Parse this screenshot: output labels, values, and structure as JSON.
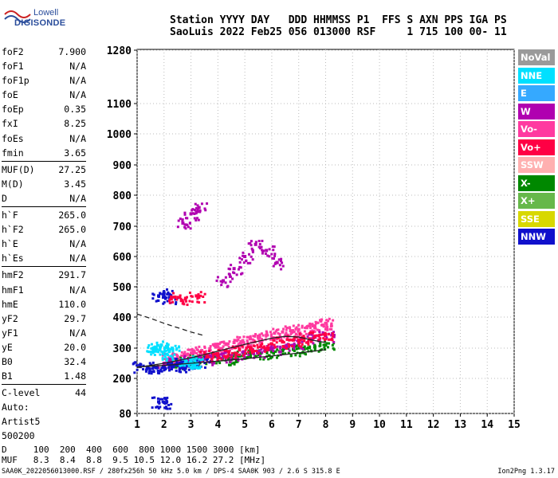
{
  "logo": {
    "line1": "Lowell",
    "line2": "DIGISONDE"
  },
  "header": {
    "line1": "Station YYYY DAY   DDD HHMMSS P1  FFS S AXN PPS IGA PS",
    "line2": "SaoLuis 2022 Feb25 056 013000 RSF     1 715 100 00- 11"
  },
  "params": [
    {
      "key": "foF2",
      "value": "7.900"
    },
    {
      "key": "foF1",
      "value": "N/A"
    },
    {
      "key": "foF1p",
      "value": "N/A"
    },
    {
      "key": "foE",
      "value": "N/A"
    },
    {
      "key": "foEp",
      "value": "0.35"
    },
    {
      "key": "fxI",
      "value": "8.25"
    },
    {
      "key": "foEs",
      "value": "N/A"
    },
    {
      "key": "fmin",
      "value": "3.65"
    },
    {
      "key": "MUF(D)",
      "value": "27.25"
    },
    {
      "key": "M(D)",
      "value": "3.45"
    },
    {
      "key": "D",
      "value": "N/A"
    },
    {
      "key": "h`F",
      "value": "265.0"
    },
    {
      "key": "h`F2",
      "value": "265.0"
    },
    {
      "key": "h`E",
      "value": "N/A"
    },
    {
      "key": "h`Es",
      "value": "N/A"
    },
    {
      "key": "hmF2",
      "value": "291.7"
    },
    {
      "key": "hmF1",
      "value": "N/A"
    },
    {
      "key": "hmE",
      "value": "110.0"
    },
    {
      "key": "yF2",
      "value": "29.7"
    },
    {
      "key": "yF1",
      "value": "N/A"
    },
    {
      "key": "yE",
      "value": "20.0"
    },
    {
      "key": "B0",
      "value": "32.4"
    },
    {
      "key": "B1",
      "value": "1.48"
    },
    {
      "key": "C-level",
      "value": "44"
    }
  ],
  "autoscale": {
    "line1": "Auto:",
    "line2": "Artist5",
    "line3": "500200"
  },
  "legend": [
    {
      "label": "NoVal",
      "color": "#9a9a9a"
    },
    {
      "label": "NNE",
      "color": "#00e0ff"
    },
    {
      "label": "E",
      "color": "#35a9ff"
    },
    {
      "label": "W",
      "color": "#b000b0"
    },
    {
      "label": "Vo-",
      "color": "#ff3aa0"
    },
    {
      "label": "Vo+",
      "color": "#ff0044"
    },
    {
      "label": "SSW",
      "color": "#ffb0b0"
    },
    {
      "label": "X-",
      "color": "#008800"
    },
    {
      "label": "X+",
      "color": "#66b84a"
    },
    {
      "label": "SSE",
      "color": "#d8d800"
    },
    {
      "label": "NNW",
      "color": "#1010cc"
    }
  ],
  "bottom": {
    "line1": "D     100  200  400  600  800 1000 1500 3000 [km]",
    "line2": "MUF   8.3  8.4  8.8  9.5 10.5 12.0 16.2 27.2 [MHz]"
  },
  "footer": "SAA0K_2022056013000.RSF / 280fx256h 50 kHz 5.0 km / DPS-4 SAA0K 903 / 2.6 S 315.8 E",
  "version": "Ion2Png 1.3.17",
  "chart_data": {
    "type": "scatter",
    "title": "",
    "xlabel": "",
    "ylabel": "",
    "xlim": [
      1,
      15
    ],
    "ylim": [
      80,
      1280
    ],
    "x_ticks": [
      1,
      2,
      3,
      4,
      5,
      6,
      7,
      8,
      9,
      10,
      11,
      12,
      13,
      14,
      15
    ],
    "y_ticks": [
      80,
      200,
      300,
      400,
      500,
      600,
      700,
      800,
      900,
      1000,
      1100,
      1280
    ],
    "grid": "dotted",
    "series": [
      {
        "name": "X-",
        "color": "#008800",
        "x": [
          2.4,
          2.6,
          3.0,
          3.2,
          3.5,
          4.0,
          4.4,
          4.8,
          5.2,
          5.6,
          6.0,
          6.4,
          6.8,
          7.2,
          7.6,
          8.0
        ],
        "y": [
          252,
          258,
          262,
          268,
          264,
          270,
          266,
          274,
          278,
          284,
          288,
          292,
          296,
          300,
          304,
          310
        ]
      },
      {
        "name": "Vo-",
        "color": "#ff3aa0",
        "x": [
          2.2,
          2.5,
          2.8,
          3.1,
          3.4,
          3.7,
          4.0,
          4.3,
          4.6,
          4.9,
          5.2,
          5.5,
          5.8,
          6.1,
          6.4,
          6.7,
          7.0,
          7.3,
          7.6,
          7.9,
          8.0
        ],
        "y": [
          268,
          272,
          278,
          286,
          292,
          298,
          304,
          312,
          318,
          322,
          330,
          336,
          342,
          348,
          352,
          356,
          360,
          366,
          370,
          374,
          380
        ]
      },
      {
        "name": "W",
        "color": "#b000b0",
        "x": [
          2.0,
          2.5,
          3.0,
          3.5,
          4.0,
          4.5,
          5.0,
          5.5,
          6.0,
          6.5,
          7.0,
          7.5,
          8.0,
          2.7,
          3.0,
          3.3,
          4.2,
          4.6,
          5.0,
          5.4,
          5.8,
          6.2
        ],
        "y": [
          250,
          255,
          260,
          265,
          270,
          275,
          282,
          290,
          298,
          306,
          318,
          330,
          340,
          710,
          740,
          760,
          520,
          560,
          600,
          640,
          620,
          580
        ]
      },
      {
        "name": "NNW",
        "color": "#1010cc",
        "x": [
          1.1,
          1.4,
          1.7,
          2.0,
          2.3,
          2.6,
          1.8,
          2.0,
          2.2,
          1.8,
          2.0,
          2.6,
          3.0,
          3.4
        ],
        "y": [
          240,
          238,
          236,
          236,
          238,
          240,
          470,
          480,
          465,
          120,
          118,
          250,
          254,
          258
        ]
      },
      {
        "name": "Vo+",
        "color": "#ff0044",
        "x": [
          2.4,
          2.8,
          3.2,
          3.6,
          4.0,
          4.4,
          4.8,
          5.2,
          5.6,
          6.0,
          6.4,
          6.8,
          7.2,
          7.6,
          8.0
        ],
        "y": [
          466,
          462,
          470,
          276,
          282,
          288,
          296,
          302,
          308,
          314,
          320,
          326,
          332,
          338,
          344
        ]
      },
      {
        "name": "NNE",
        "color": "#00e0ff",
        "x": [
          1.6,
          1.7,
          1.9,
          2.1,
          2.3,
          2.8,
          3.0,
          3.2
        ],
        "y": [
          300,
          290,
          310,
          280,
          300,
          260,
          255,
          250
        ]
      }
    ],
    "trace_curves": [
      {
        "name": "virtual-height",
        "style": "solid",
        "x": [
          1.0,
          2.0,
          3.0,
          4.0,
          5.0,
          6.0,
          7.0,
          8.0
        ],
        "y": [
          238,
          243,
          250,
          257,
          265,
          274,
          284,
          295
        ]
      },
      {
        "name": "profile-upper",
        "style": "solid",
        "x": [
          1.0,
          2.0,
          3.0,
          4.0,
          5.0,
          6.0,
          6.5,
          7.0,
          7.5,
          8.0
        ],
        "y": [
          236,
          250,
          268,
          290,
          312,
          332,
          338,
          336,
          326,
          318
        ]
      },
      {
        "name": "profile-lower",
        "style": "dashed",
        "x": [
          1.0,
          1.5,
          2.0,
          2.5,
          3.0,
          3.5
        ],
        "y": [
          410,
          396,
          380,
          366,
          352,
          340
        ]
      }
    ]
  }
}
